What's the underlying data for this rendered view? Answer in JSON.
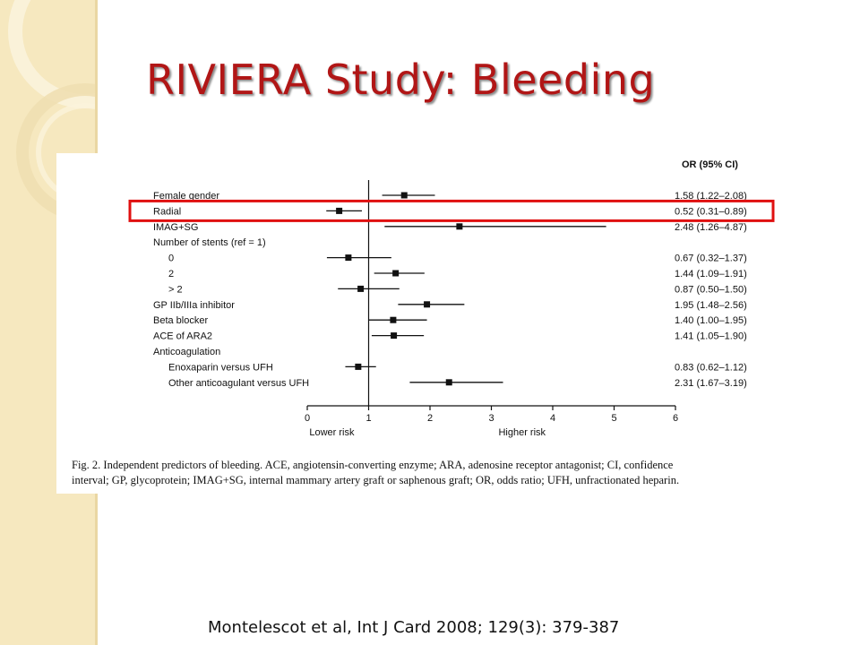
{
  "slide": {
    "title": "RIVIERA Study:  Bleeding",
    "citation": "Montelescot et al, Int J Card 2008; 129(3): 379-387",
    "caption": "Fig. 2. Independent predictors of bleeding. ACE, angiotensin-converting enzyme; ARA, adenosine receptor antagonist; CI, confidence interval; GP, glycoprotein; IMAG+SG, internal mammary artery graft or saphenous graft; OR, odds ratio; UFH, unfractionated heparin.",
    "colors": {
      "title": "#b11616",
      "highlight": "#e01010",
      "sidebar": "#f6e8bf"
    },
    "highlighted_row": "Radial"
  },
  "chart_data": {
    "type": "forest",
    "column_header": "OR (95% CI)",
    "xlim": [
      0,
      6
    ],
    "xticks": [
      0,
      1,
      2,
      3,
      4,
      5,
      6
    ],
    "reference_line": 1,
    "xlabel_left": "Lower risk",
    "xlabel_right": "Higher risk",
    "rows": [
      {
        "label": "Female gender",
        "indent": 0,
        "or": 1.58,
        "lo": 1.22,
        "hi": 2.08,
        "text": "1.58 (1.22–2.08)"
      },
      {
        "label": "Radial",
        "indent": 0,
        "or": 0.52,
        "lo": 0.31,
        "hi": 0.89,
        "text": "0.52 (0.31–0.89)"
      },
      {
        "label": "IMAG+SG",
        "indent": 0,
        "or": 2.48,
        "lo": 1.26,
        "hi": 4.87,
        "text": "2.48 (1.26–4.87)"
      },
      {
        "label": "Number of stents (ref = 1)",
        "indent": 0
      },
      {
        "label": "0",
        "indent": 1,
        "or": 0.67,
        "lo": 0.32,
        "hi": 1.37,
        "text": "0.67 (0.32–1.37)"
      },
      {
        "label": "2",
        "indent": 1,
        "or": 1.44,
        "lo": 1.09,
        "hi": 1.91,
        "text": "1.44 (1.09–1.91)"
      },
      {
        "label": "> 2",
        "indent": 1,
        "or": 0.87,
        "lo": 0.5,
        "hi": 1.5,
        "text": "0.87 (0.50–1.50)"
      },
      {
        "label": "GP IIb/IIIa inhibitor",
        "indent": 0,
        "or": 1.95,
        "lo": 1.48,
        "hi": 2.56,
        "text": "1.95 (1.48–2.56)"
      },
      {
        "label": "Beta blocker",
        "indent": 0,
        "or": 1.4,
        "lo": 1.0,
        "hi": 1.95,
        "text": "1.40 (1.00–1.95)"
      },
      {
        "label": "ACE of ARA2",
        "indent": 0,
        "or": 1.41,
        "lo": 1.05,
        "hi": 1.9,
        "text": "1.41 (1.05–1.90)"
      },
      {
        "label": "Anticoagulation",
        "indent": 0
      },
      {
        "label": "Enoxaparin versus UFH",
        "indent": 1,
        "or": 0.83,
        "lo": 0.62,
        "hi": 1.12,
        "text": "0.83 (0.62–1.12)"
      },
      {
        "label": "Other anticoagulant versus UFH",
        "indent": 1,
        "or": 2.31,
        "lo": 1.67,
        "hi": 3.19,
        "text": "2.31 (1.67–3.19)"
      }
    ]
  }
}
